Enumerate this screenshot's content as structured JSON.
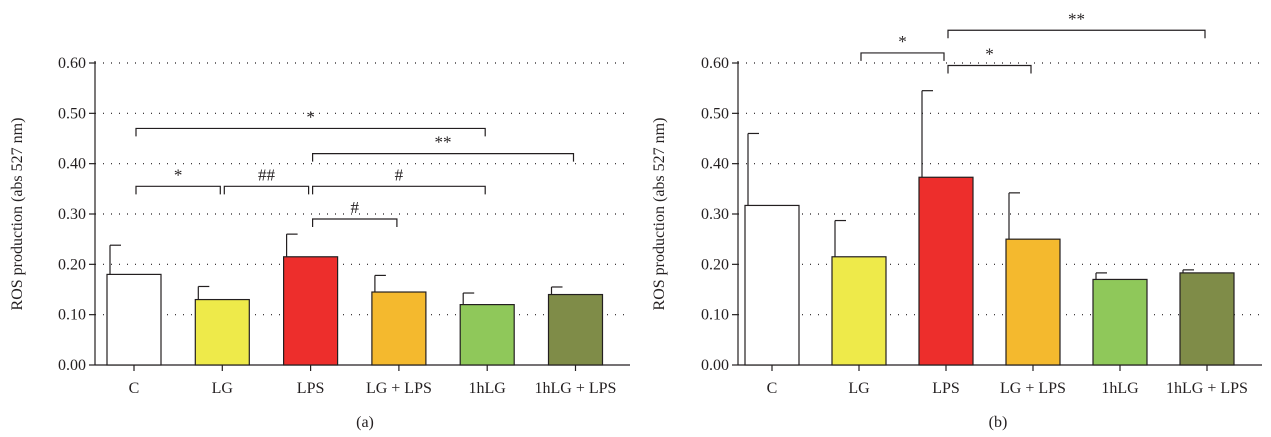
{
  "chart_data": [
    {
      "type": "bar",
      "panel_label": "(a)",
      "ylabel": "ROS production (abs 527 nm)",
      "ylim": [
        0,
        0.6
      ],
      "yticks": [
        "0.00",
        "0.10",
        "0.20",
        "0.30",
        "0.40",
        "0.50",
        "0.60"
      ],
      "grid": true,
      "categories": [
        "C",
        "LG",
        "LPS",
        "LG + LPS",
        "1hLG",
        "1hLG + LPS"
      ],
      "values": [
        0.18,
        0.13,
        0.215,
        0.145,
        0.12,
        0.14
      ],
      "errors": [
        0.058,
        0.026,
        0.045,
        0.033,
        0.023,
        0.015
      ],
      "colors": [
        "#ffffff",
        "#eeea4a",
        "#ed2e2c",
        "#f4b92e",
        "#8fc85a",
        "#7f8c48"
      ],
      "significance": [
        {
          "from": 0,
          "to": 1,
          "label": "*",
          "y": 0.355
        },
        {
          "from": 1,
          "to": 2,
          "label": "##",
          "y": 0.355
        },
        {
          "from": 2,
          "to": 4,
          "label": "#",
          "y": 0.355
        },
        {
          "from": 2,
          "to": 3,
          "label": "#",
          "y": 0.29
        },
        {
          "from": 0,
          "to": 4,
          "label": "*",
          "y": 0.47
        },
        {
          "from": 2,
          "to": 5,
          "label": "**",
          "y": 0.42
        }
      ]
    },
    {
      "type": "bar",
      "panel_label": "(b)",
      "ylabel": "ROS production (abs 527 nm)",
      "ylim": [
        0,
        0.6
      ],
      "yticks": [
        "0.00",
        "0.10",
        "0.20",
        "0.30",
        "0.40",
        "0.50",
        "0.60"
      ],
      "grid": true,
      "categories": [
        "C",
        "LG",
        "LPS",
        "LG + LPS",
        "1hLG",
        "1hLG + LPS"
      ],
      "values": [
        0.317,
        0.215,
        0.373,
        0.25,
        0.17,
        0.183
      ],
      "errors": [
        0.143,
        0.072,
        0.172,
        0.092,
        0.013,
        0.006
      ],
      "colors": [
        "#ffffff",
        "#eeea4a",
        "#ed2e2c",
        "#f4b92e",
        "#8fc85a",
        "#7f8c48"
      ],
      "significance": [
        {
          "from": 1,
          "to": 2,
          "label": "*",
          "y": 0.62
        },
        {
          "from": 2,
          "to": 3,
          "label": "*",
          "y": 0.595
        },
        {
          "from": 2,
          "to": 5,
          "label": "**",
          "y": 0.665
        }
      ]
    }
  ]
}
